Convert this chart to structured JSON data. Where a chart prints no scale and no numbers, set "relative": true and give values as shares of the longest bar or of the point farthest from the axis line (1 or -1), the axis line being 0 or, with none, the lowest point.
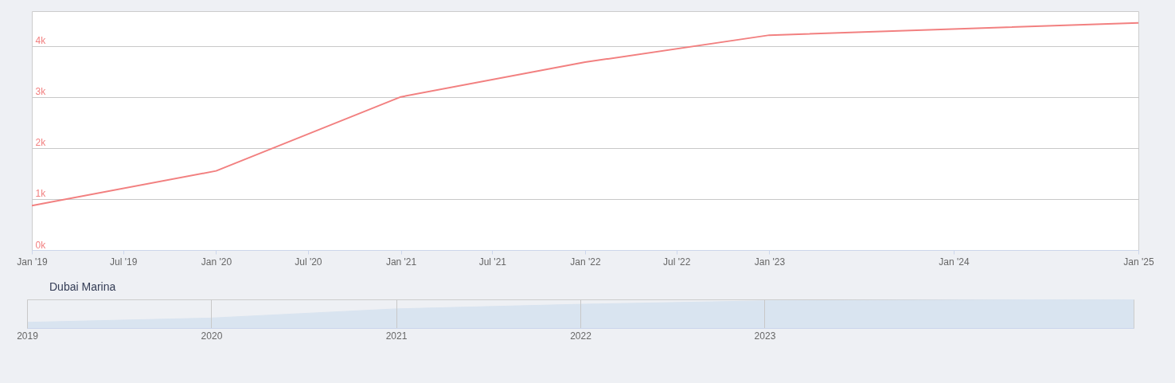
{
  "chart_data": [
    {
      "type": "line",
      "x": [
        "2019-01",
        "2020-01",
        "2021-01",
        "2022-01",
        "2023-01",
        "2025-01"
      ],
      "series": [
        {
          "name": "Dubai Marina",
          "color": "#f28080",
          "values": [
            870,
            1550,
            3000,
            3680,
            4210,
            4450
          ]
        }
      ],
      "xlim": [
        "2019-01",
        "2025-01"
      ],
      "xticks": [
        {
          "value": "2019-01",
          "label": "Jan '19"
        },
        {
          "value": "2019-07",
          "label": "Jul '19"
        },
        {
          "value": "2020-01",
          "label": "Jan '20"
        },
        {
          "value": "2020-07",
          "label": "Jul '20"
        },
        {
          "value": "2021-01",
          "label": "Jan '21"
        },
        {
          "value": "2021-07",
          "label": "Jul '21"
        },
        {
          "value": "2022-01",
          "label": "Jan '22"
        },
        {
          "value": "2022-07",
          "label": "Jul '22"
        },
        {
          "value": "2023-01",
          "label": "Jan '23"
        },
        {
          "value": "2024-01",
          "label": "Jan '24"
        },
        {
          "value": "2025-01",
          "label": "Jan '25"
        }
      ],
      "ylim": [
        0,
        4680
      ],
      "yticks": [
        {
          "value": 0,
          "label": "0k"
        },
        {
          "value": 1000,
          "label": "1k"
        },
        {
          "value": 2000,
          "label": "2k"
        },
        {
          "value": 3000,
          "label": "3k"
        },
        {
          "value": 4000,
          "label": "4k"
        }
      ],
      "grid": "y",
      "legend": "bottom"
    },
    {
      "type": "area",
      "relative": true,
      "x": [
        "2019-01",
        "2020-01",
        "2021-01",
        "2022-01",
        "2023-01",
        "2025-01"
      ],
      "series": [
        {
          "color": "#d9e4f0",
          "values": [
            0.2,
            0.35,
            0.67,
            0.83,
            0.95,
            1
          ]
        }
      ],
      "xlim": [
        "2019-01",
        "2025-01"
      ],
      "xticks": [
        {
          "value": "2019-01",
          "label": "2019"
        },
        {
          "value": "2020-01",
          "label": "2020"
        },
        {
          "value": "2021-01",
          "label": "2021"
        },
        {
          "value": "2022-01",
          "label": "2022"
        },
        {
          "value": "2023-01",
          "label": "2023"
        }
      ],
      "grid": "x",
      "tick_labels": "x"
    }
  ]
}
